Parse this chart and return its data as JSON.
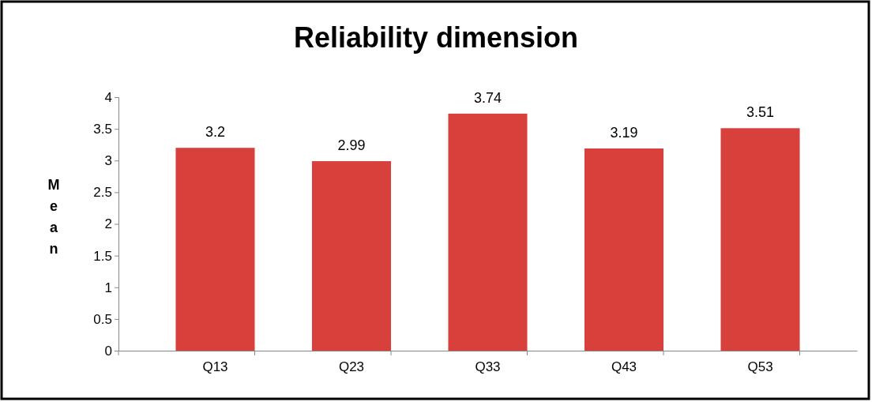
{
  "chart_data": {
    "type": "bar",
    "title": "Reliability dimension",
    "ylabel": "Mean",
    "categories": [
      "Q13",
      "Q23",
      "Q33",
      "Q43",
      "Q53"
    ],
    "values": [
      3.2,
      2.99,
      3.74,
      3.19,
      3.51
    ],
    "color": "#d8403c",
    "ylim": [
      0,
      4
    ],
    "yticks": [
      0,
      0.5,
      1,
      1.5,
      2,
      2.5,
      3,
      3.5,
      4
    ],
    "data_labels": true,
    "grid": false
  }
}
